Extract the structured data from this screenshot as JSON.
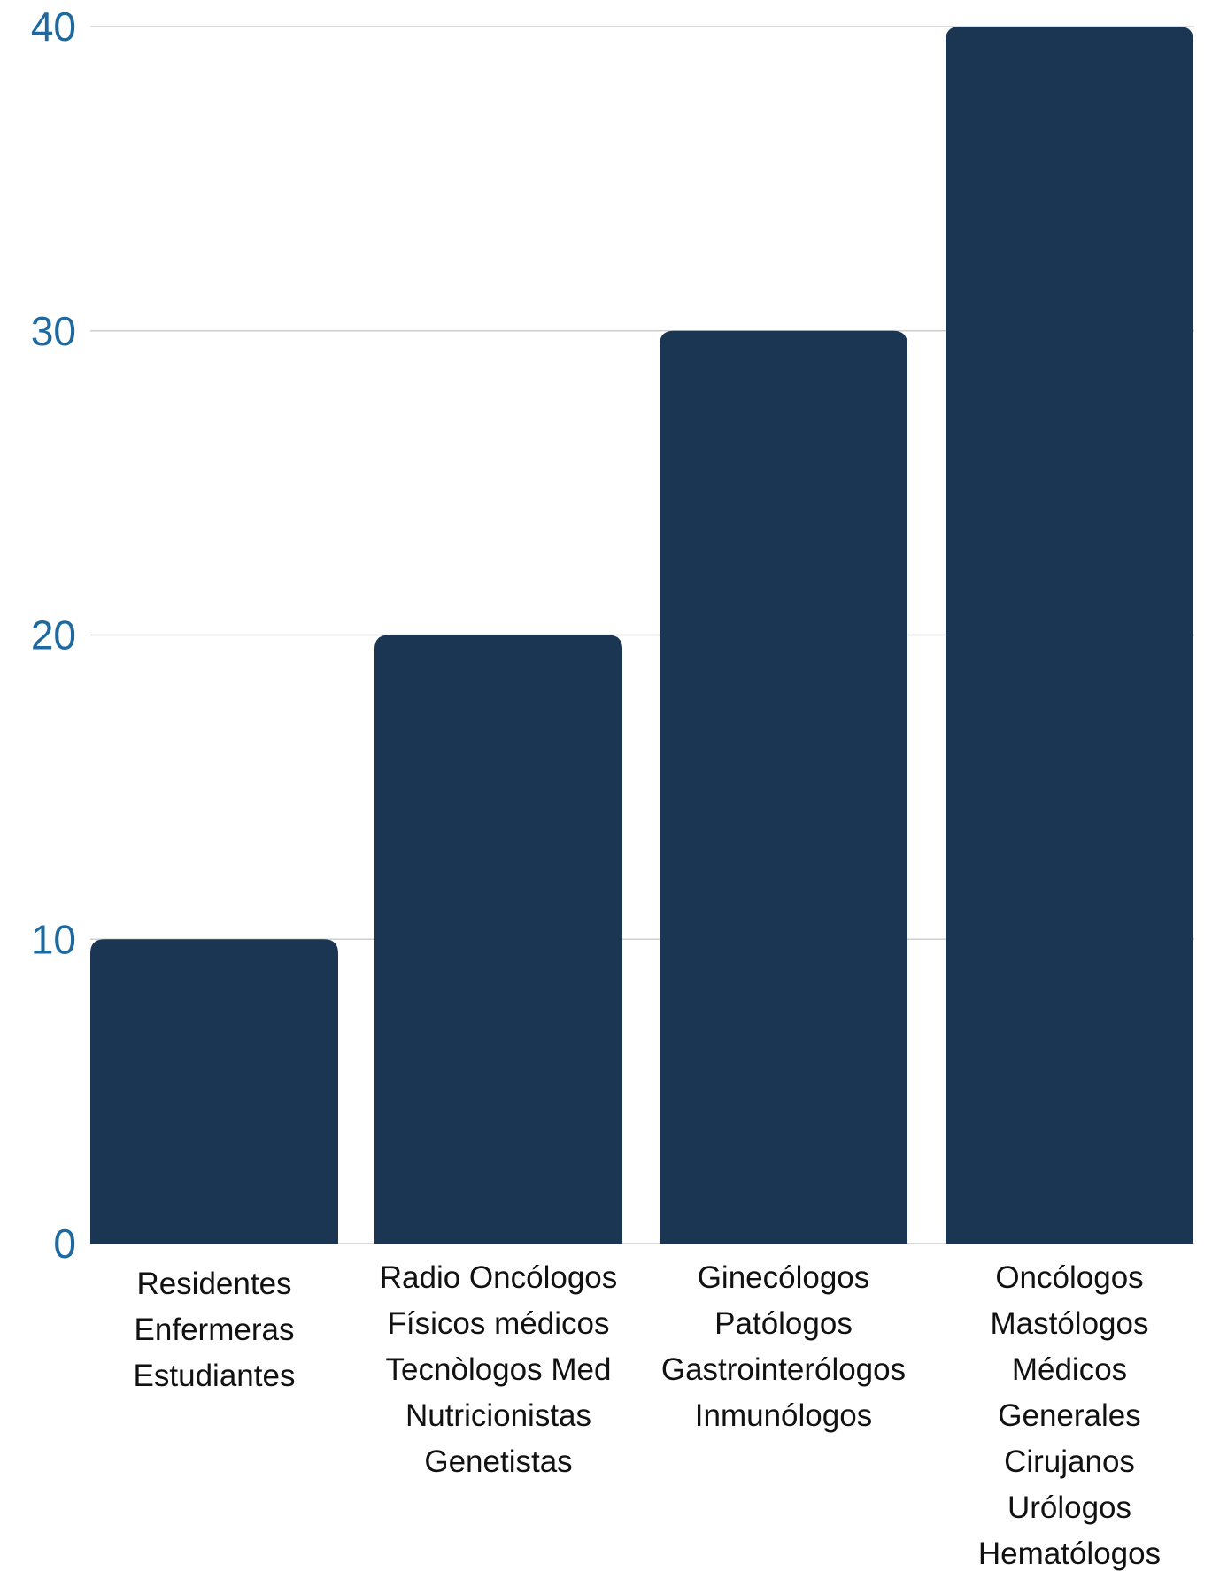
{
  "chart_data": {
    "type": "bar",
    "categories": [
      "Residentes Enfermeras Estudiantes",
      "Radio Oncólogos Físicos médicos Tecnòlogos Med Nutricionistas Genetistas",
      "Ginecólogos Patólogos Gastrointerólogos Inmunólogos",
      "Oncólogos Mastólogos Médicos Generales Cirujanos Urólogos Hematólogos"
    ],
    "category_lines": [
      [
        "Residentes",
        "Enfermeras",
        "Estudiantes"
      ],
      [
        "Radio Oncólogos",
        "Físicos médicos",
        "Tecnòlogos Med",
        "Nutricionistas",
        "Genetistas"
      ],
      [
        "Ginecólogos",
        "Patólogos",
        "Gastrointerólogos",
        "Inmunólogos"
      ],
      [
        "Oncólogos",
        "Mastólogos",
        "Médicos",
        "Generales",
        "Cirujanos",
        "Urólogos",
        "Hematólogos"
      ]
    ],
    "values": [
      10,
      20,
      30,
      40
    ],
    "yticks": [
      "0",
      "10",
      "20",
      "30",
      "40"
    ],
    "ylim": [
      0,
      40
    ],
    "grid": true,
    "title": "",
    "xlabel": "",
    "ylabel": "",
    "colors": {
      "bar": "#1b3653",
      "tick_label": "#1e6aa0",
      "category_label": "#111111",
      "grid": "#cfcfcf"
    }
  }
}
